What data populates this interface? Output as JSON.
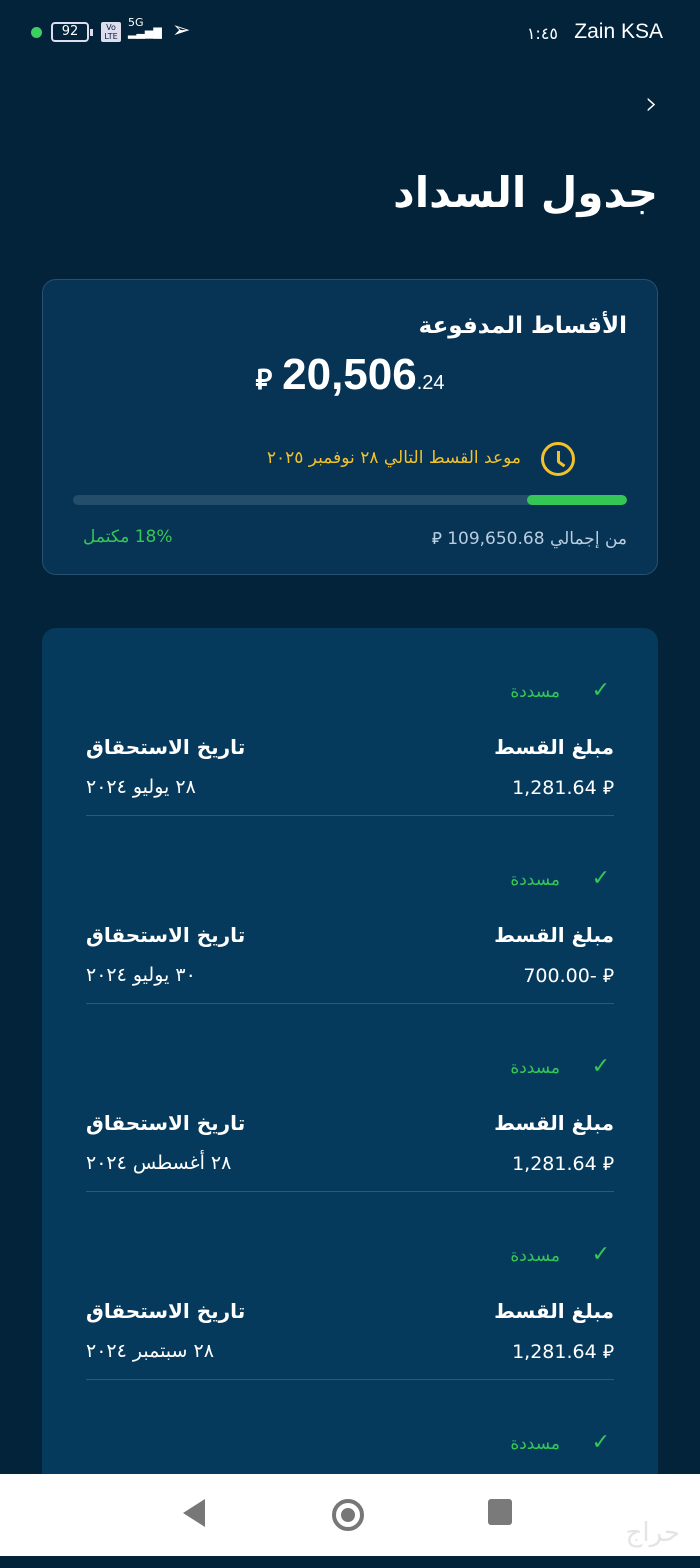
{
  "status_bar": {
    "battery": "92",
    "network": "5G",
    "volte": "Vo LTE",
    "time": "١:٤٥",
    "carrier": "Zain KSA"
  },
  "header": {
    "title": "جدول السداد"
  },
  "summary": {
    "title": "الأقساط المدفوعة",
    "amount_main": "20,506",
    "amount_decimal": ".24",
    "currency": "⃁",
    "next_due": "موعد القسط التالي ٢٨ نوفمبر ٢٠٢٥",
    "total": "من إجمالي 109,650.68 ⃁",
    "percent_label": "18% مكتمل",
    "progress_percent": 18,
    "accent": "#35c756",
    "warning": "#f1c22b"
  },
  "installments": {
    "amount_label": "مبلغ القسط",
    "date_label": "تاريخ الاستحقاق",
    "items": [
      {
        "status": "مسددة",
        "amount": "⃁ 1,281.64",
        "date": "٢٨ يوليو ٢٠٢٤"
      },
      {
        "status": "مسددة",
        "amount": "⃁ -700.00",
        "date": "٣٠ يوليو ٢٠٢٤"
      },
      {
        "status": "مسددة",
        "amount": "⃁ 1,281.64",
        "date": "٢٨ أغسطس ٢٠٢٤"
      },
      {
        "status": "مسددة",
        "amount": "⃁ 1,281.64",
        "date": "٢٨ سبتمبر ٢٠٢٤"
      },
      {
        "status": "مسددة"
      }
    ]
  },
  "watermark": "حراج"
}
